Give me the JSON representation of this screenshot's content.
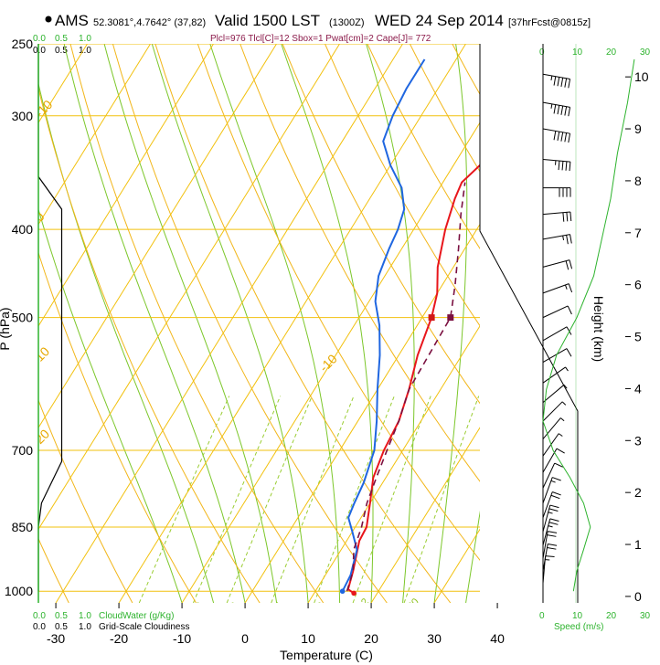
{
  "header": {
    "station": "AMS",
    "coords": "52.3081°,4.7642° (37,82)",
    "valid": "Valid 1500 LST",
    "utc": "(1300Z)",
    "date": "WED 24 Sep 2014",
    "forecast": "[37hrFcst@0815z]",
    "params": "Plcl=976 Tlcl[C]=12 Sbox=1 Pwat[cm]=2 Cape[J]= 772"
  },
  "scales": {
    "cloud_top": [
      "0.0",
      "0.5",
      "1.0"
    ],
    "cloud_top_black": [
      "0.0",
      "0.5",
      "1.0"
    ],
    "cloud_bottom": [
      "0.0",
      "0.5",
      "1.0"
    ],
    "cloud_bottom_black": [
      "0.0",
      "0.5",
      "1.0"
    ],
    "cloudwater_label": "CloudWater (g/Kg)",
    "gridscale_label": "Grid-Scale Cloudiness",
    "speed_top": [
      "0",
      "10",
      "20",
      "30"
    ],
    "speed_bottom": [
      "0",
      "10",
      "20",
      "30"
    ],
    "speed_label": "Speed (m/s)"
  },
  "chart_data": {
    "type": "line",
    "title": "",
    "xlabel": "Temperature (C)",
    "ylabel": "P (hPa)",
    "y2label": "Height (km)",
    "x_ticks": [
      -30,
      -20,
      -10,
      0,
      10,
      20,
      30,
      40
    ],
    "y_ticks": [
      250,
      300,
      400,
      500,
      700,
      850,
      1000
    ],
    "height_ticks": [
      0,
      1,
      2,
      3,
      4,
      5,
      6,
      7,
      8,
      9,
      10
    ],
    "xlim": [
      -35,
      45
    ],
    "ylim": [
      250,
      1030
    ],
    "isotherm_labels": [
      {
        "text": "-10",
        "t": -10,
        "p": 302
      },
      {
        "text": "0",
        "t": 0,
        "p": 393
      },
      {
        "text": "10",
        "t": 10,
        "p": 560
      },
      {
        "text": "20",
        "t": 20,
        "p": 690
      },
      {
        "text": "-10",
        "t": -10,
        "p": 575
      },
      {
        "text": "0",
        "t": 0,
        "p": 352
      },
      {
        "text": "10",
        "t": 10,
        "p": 420
      },
      {
        "text": "20",
        "t": 20,
        "p": 474
      },
      {
        "text": "30",
        "t": 30,
        "p": 540
      }
    ],
    "mixing_labels": [
      "2",
      "3",
      "5",
      "8",
      "12",
      "20"
    ],
    "series": [
      {
        "name": "Temperature",
        "color": "#e8161c",
        "points": [
          [
            16.3,
            1005
          ],
          [
            15.0,
            995
          ],
          [
            14.0,
            950
          ],
          [
            12.0,
            880
          ],
          [
            11.8,
            850
          ],
          [
            10.0,
            800
          ],
          [
            8.0,
            750
          ],
          [
            7.0,
            700
          ],
          [
            6.5,
            650
          ],
          [
            5.0,
            600
          ],
          [
            3.0,
            550
          ],
          [
            1.5,
            500
          ],
          [
            0.0,
            470
          ],
          [
            -2.5,
            440
          ],
          [
            -5.0,
            400
          ],
          [
            -6.5,
            370
          ],
          [
            -7.0,
            355
          ],
          [
            -5.0,
            330
          ],
          [
            -3.0,
            300
          ],
          [
            -2.0,
            280
          ],
          [
            -1.0,
            260
          ]
        ]
      },
      {
        "name": "Dewpoint",
        "color": "#1f66e0",
        "points": [
          [
            14.3,
            1000
          ],
          [
            14.0,
            960
          ],
          [
            12.5,
            900
          ],
          [
            10.0,
            860
          ],
          [
            8.0,
            830
          ],
          [
            7.5,
            800
          ],
          [
            7.0,
            760
          ],
          [
            5.5,
            700
          ],
          [
            3.0,
            650
          ],
          [
            0.0,
            600
          ],
          [
            -3.0,
            550
          ],
          [
            -6.0,
            510
          ],
          [
            -9.0,
            480
          ],
          [
            -11.0,
            450
          ],
          [
            -12.0,
            420
          ],
          [
            -12.5,
            400
          ],
          [
            -13.5,
            380
          ],
          [
            -16.0,
            360
          ],
          [
            -20.0,
            340
          ],
          [
            -23.5,
            320
          ],
          [
            -24.5,
            300
          ],
          [
            -25.0,
            280
          ],
          [
            -25.0,
            260
          ]
        ]
      },
      {
        "name": "Parcel",
        "color": "#7a1040",
        "dashed": true,
        "points": [
          [
            15.0,
            1000
          ],
          [
            14.0,
            950
          ],
          [
            12.0,
            900
          ],
          [
            11.0,
            850
          ],
          [
            9.5,
            800
          ],
          [
            8.5,
            750
          ],
          [
            7.5,
            700
          ],
          [
            6.5,
            650
          ],
          [
            5.0,
            600
          ],
          [
            4.5,
            500
          ],
          [
            2.0,
            460
          ],
          [
            -1.0,
            420
          ],
          [
            -4.0,
            385
          ],
          [
            -6.5,
            355
          ]
        ]
      }
    ],
    "markers": [
      {
        "name": "T500",
        "t": 1.5,
        "p": 500,
        "color": "#d01818"
      },
      {
        "name": "Td500",
        "t": 4.5,
        "p": 500,
        "color": "#7a1040"
      },
      {
        "name": "Tsfc",
        "t": 16.3,
        "p": 1005,
        "color": "#e8161c"
      },
      {
        "name": "Tdsfc",
        "t": 14.3,
        "p": 1000,
        "color": "#1f66e0"
      }
    ],
    "cloud_fraction_profile": [
      [
        0.0,
        1000
      ],
      [
        0.0,
        850
      ],
      [
        0.02,
        800
      ],
      [
        0.15,
        720
      ],
      [
        0.15,
        380
      ],
      [
        0.0,
        350
      ],
      [
        0.0,
        250
      ]
    ],
    "wind_speed_profile": [
      [
        9,
        1000
      ],
      [
        10,
        950
      ],
      [
        12,
        900
      ],
      [
        14,
        850
      ],
      [
        12,
        800
      ],
      [
        8,
        750
      ],
      [
        3,
        700
      ],
      [
        0,
        650
      ],
      [
        1,
        600
      ],
      [
        4,
        550
      ],
      [
        10,
        500
      ],
      [
        15,
        450
      ],
      [
        18,
        400
      ],
      [
        20,
        370
      ],
      [
        22,
        330
      ],
      [
        25,
        290
      ],
      [
        27,
        260
      ]
    ],
    "wind_barbs": [
      {
        "p": 270,
        "dir": 280,
        "spd": 55
      },
      {
        "p": 290,
        "dir": 280,
        "spd": 55
      },
      {
        "p": 310,
        "dir": 280,
        "spd": 50
      },
      {
        "p": 335,
        "dir": 275,
        "spd": 45
      },
      {
        "p": 360,
        "dir": 270,
        "spd": 40
      },
      {
        "p": 385,
        "dir": 265,
        "spd": 30
      },
      {
        "p": 410,
        "dir": 260,
        "spd": 25
      },
      {
        "p": 440,
        "dir": 255,
        "spd": 20
      },
      {
        "p": 470,
        "dir": 250,
        "spd": 15
      },
      {
        "p": 500,
        "dir": 245,
        "spd": 10
      },
      {
        "p": 530,
        "dir": 240,
        "spd": 10
      },
      {
        "p": 560,
        "dir": 240,
        "spd": 10
      },
      {
        "p": 590,
        "dir": 235,
        "spd": 5
      },
      {
        "p": 620,
        "dir": 230,
        "spd": 5
      },
      {
        "p": 650,
        "dir": 225,
        "spd": 5
      },
      {
        "p": 680,
        "dir": 220,
        "spd": 5
      },
      {
        "p": 710,
        "dir": 215,
        "spd": 5
      },
      {
        "p": 740,
        "dir": 210,
        "spd": 10
      },
      {
        "p": 770,
        "dir": 205,
        "spd": 10
      },
      {
        "p": 800,
        "dir": 200,
        "spd": 15
      },
      {
        "p": 830,
        "dir": 200,
        "spd": 20
      },
      {
        "p": 860,
        "dir": 195,
        "spd": 25
      },
      {
        "p": 890,
        "dir": 195,
        "spd": 25
      },
      {
        "p": 920,
        "dir": 190,
        "spd": 20
      },
      {
        "p": 950,
        "dir": 190,
        "spd": 20
      },
      {
        "p": 980,
        "dir": 185,
        "spd": 15
      }
    ]
  },
  "colors": {
    "isobar": "#f2c10e",
    "isotherm": "#f2c10e",
    "dry_adiabat": "#f2b61a",
    "moist_adiabat": "#7cc72a",
    "mixing_ratio": "#9acd32",
    "speed_line": "#2db32d",
    "cloud_line": "#000000"
  }
}
